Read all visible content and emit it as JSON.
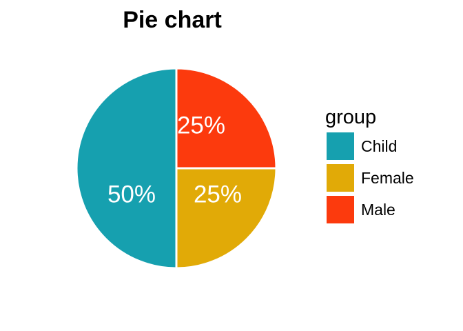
{
  "chart_data": {
    "type": "pie",
    "title": "Pie chart",
    "legend_title": "group",
    "legend_position": "right",
    "slices": [
      {
        "label": "Child",
        "value": 50,
        "display": "50%",
        "color": "#16A0AF"
      },
      {
        "label": "Female",
        "value": 25,
        "display": "25%",
        "color": "#E1AA07"
      },
      {
        "label": "Male",
        "value": 25,
        "display": "25%",
        "color": "#FC3A0D"
      }
    ]
  }
}
